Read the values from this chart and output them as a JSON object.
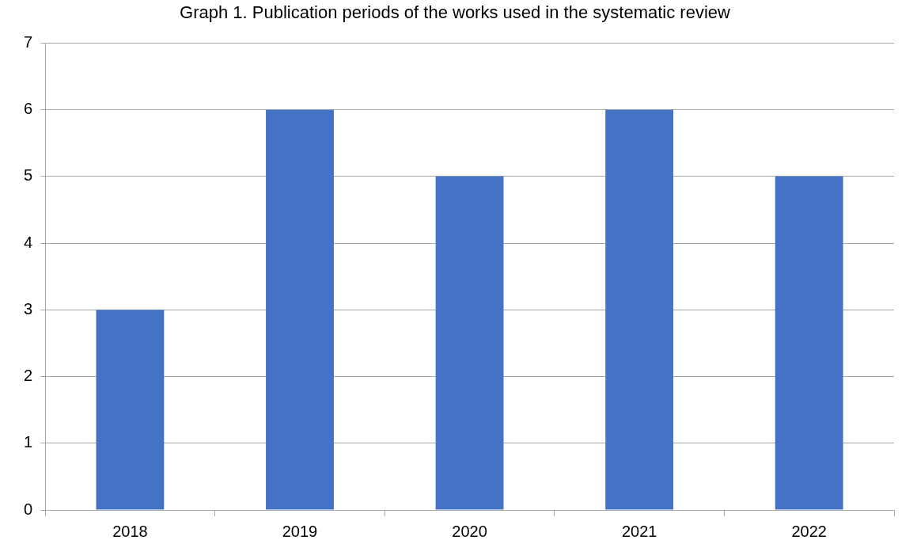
{
  "chart_data": {
    "type": "bar",
    "title": "Graph 1. Publication periods of the works used in the systematic review",
    "categories": [
      "2018",
      "2019",
      "2020",
      "2021",
      "2022"
    ],
    "values": [
      3,
      6,
      5,
      6,
      5
    ],
    "color": "#4472c4",
    "ylim": [
      0,
      7
    ],
    "yticks": [
      0,
      1,
      2,
      3,
      4,
      5,
      6,
      7
    ],
    "grid": "y",
    "legend": false
  }
}
